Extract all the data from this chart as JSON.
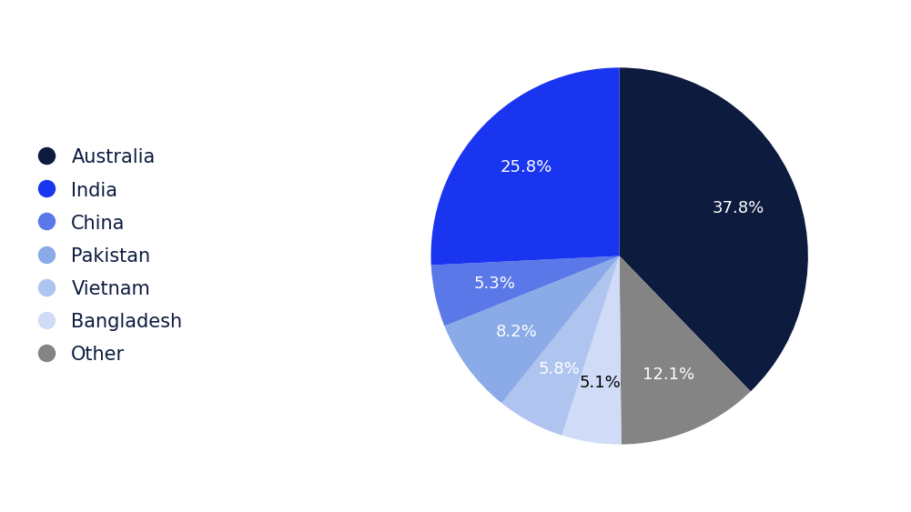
{
  "labels_ordered": [
    "Australia",
    "Other",
    "Bangladesh",
    "Vietnam",
    "Pakistan",
    "China",
    "India"
  ],
  "values_ordered": [
    37.8,
    12.1,
    5.1,
    5.8,
    8.2,
    5.3,
    25.8
  ],
  "colors_ordered": [
    "#0d1b3e",
    "#848484",
    "#d0dcf7",
    "#b0c4f0",
    "#8aaae8",
    "#5b78e8",
    "#1a35f0"
  ],
  "text_colors_ordered": [
    "white",
    "white",
    "black",
    "white",
    "white",
    "white",
    "white"
  ],
  "legend_labels": [
    "Australia",
    "India",
    "China",
    "Pakistan",
    "Vietnam",
    "Bangladesh",
    "Other"
  ],
  "legend_colors": [
    "#0d1b3e",
    "#1a35f0",
    "#5b78e8",
    "#8aaae8",
    "#b0c4f0",
    "#d0dcf7",
    "#848484"
  ],
  "background_color": "#ffffff",
  "label_fontsize": 13,
  "legend_fontsize": 15,
  "legend_text_color": "#0d1b3e",
  "startangle": 90
}
